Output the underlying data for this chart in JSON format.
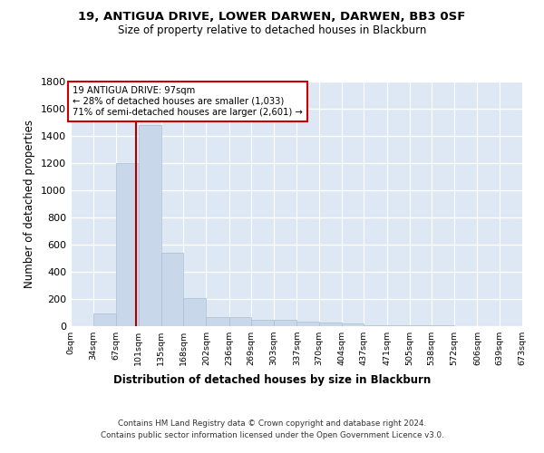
{
  "title1": "19, ANTIGUA DRIVE, LOWER DARWEN, DARWEN, BB3 0SF",
  "title2": "Size of property relative to detached houses in Blackburn",
  "xlabel": "Distribution of detached houses by size in Blackburn",
  "ylabel": "Number of detached properties",
  "footer1": "Contains HM Land Registry data © Crown copyright and database right 2024.",
  "footer2": "Contains public sector information licensed under the Open Government Licence v3.0.",
  "annotation_title": "19 ANTIGUA DRIVE: 97sqm",
  "annotation_line1": "← 28% of detached houses are smaller (1,033)",
  "annotation_line2": "71% of semi-detached houses are larger (2,601) →",
  "property_size": 97,
  "bar_color": "#c8d8ea",
  "bar_edge_color": "#a8bfd0",
  "vline_color": "#aa0000",
  "annotation_box_color": "#ffffff",
  "annotation_box_edge": "#cc0000",
  "bg_color": "#dde8f4",
  "grid_color": "#ffffff",
  "fig_bg_color": "#ffffff",
  "bin_edges": [
    0,
    34,
    67,
    101,
    135,
    168,
    202,
    236,
    269,
    303,
    337,
    370,
    404,
    437,
    471,
    505,
    538,
    572,
    606,
    639,
    673
  ],
  "bin_counts": [
    0,
    92,
    1200,
    1480,
    540,
    205,
    70,
    68,
    50,
    45,
    35,
    25,
    18,
    10,
    10,
    8,
    5,
    3,
    2,
    2
  ],
  "ylim": [
    0,
    1800
  ],
  "yticks": [
    0,
    200,
    400,
    600,
    800,
    1000,
    1200,
    1400,
    1600,
    1800
  ]
}
